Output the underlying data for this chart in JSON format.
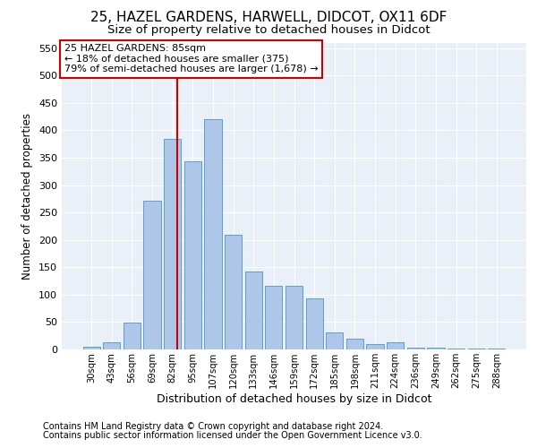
{
  "title": "25, HAZEL GARDENS, HARWELL, DIDCOT, OX11 6DF",
  "subtitle": "Size of property relative to detached houses in Didcot",
  "xlabel": "Distribution of detached houses by size in Didcot",
  "ylabel": "Number of detached properties",
  "categories": [
    "30sqm",
    "43sqm",
    "56sqm",
    "69sqm",
    "82sqm",
    "95sqm",
    "107sqm",
    "120sqm",
    "133sqm",
    "146sqm",
    "159sqm",
    "172sqm",
    "185sqm",
    "198sqm",
    "211sqm",
    "224sqm",
    "236sqm",
    "249sqm",
    "262sqm",
    "275sqm",
    "288sqm"
  ],
  "values": [
    5,
    13,
    49,
    272,
    385,
    344,
    420,
    210,
    143,
    116,
    116,
    93,
    31,
    20,
    9,
    13,
    4,
    3,
    2,
    1,
    2
  ],
  "bar_color": "#aec6e8",
  "bar_edge_color": "#5a9fd4",
  "vline_color": "#cc0000",
  "annotation_box": {
    "text_line1": "25 HAZEL GARDENS: 85sqm",
    "text_line2": "← 18% of detached houses are smaller (375)",
    "text_line3": "79% of semi-detached houses are larger (1,678) →",
    "box_color": "#ffffff",
    "box_edge_color": "#cc0000",
    "fontsize": 8.0
  },
  "footer_line1": "Contains HM Land Registry data © Crown copyright and database right 2024.",
  "footer_line2": "Contains public sector information licensed under the Open Government Licence v3.0.",
  "ylim": [
    0,
    560
  ],
  "yticks": [
    0,
    50,
    100,
    150,
    200,
    250,
    300,
    350,
    400,
    450,
    500,
    550
  ],
  "bg_color": "#eaf0f8",
  "title_fontsize": 11,
  "subtitle_fontsize": 9.5,
  "footer_fontsize": 7.0
}
